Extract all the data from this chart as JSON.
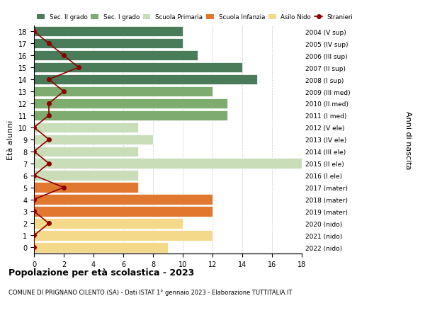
{
  "ages": [
    18,
    17,
    16,
    15,
    14,
    13,
    12,
    11,
    10,
    9,
    8,
    7,
    6,
    5,
    4,
    3,
    2,
    1,
    0
  ],
  "years": [
    "2004 (V sup)",
    "2005 (IV sup)",
    "2006 (III sup)",
    "2007 (II sup)",
    "2008 (I sup)",
    "2009 (III med)",
    "2010 (II med)",
    "2011 (I med)",
    "2012 (V ele)",
    "2013 (IV ele)",
    "2014 (III ele)",
    "2015 (II ele)",
    "2016 (I ele)",
    "2017 (mater)",
    "2018 (mater)",
    "2019 (mater)",
    "2020 (nido)",
    "2021 (nido)",
    "2022 (nido)"
  ],
  "bar_values": [
    10,
    10,
    11,
    14,
    15,
    12,
    13,
    13,
    7,
    8,
    7,
    18,
    7,
    7,
    12,
    12,
    10,
    12,
    9
  ],
  "bar_colors": [
    "#4a7c59",
    "#4a7c59",
    "#4a7c59",
    "#4a7c59",
    "#4a7c59",
    "#7eab6e",
    "#7eab6e",
    "#7eab6e",
    "#c8ddb8",
    "#c8ddb8",
    "#c8ddb8",
    "#c8ddb8",
    "#c8ddb8",
    "#e07830",
    "#e07830",
    "#e07830",
    "#f5d98b",
    "#f5d98b",
    "#f5d98b"
  ],
  "stranieri_values": [
    0,
    1,
    2,
    3,
    1,
    2,
    1,
    1,
    0,
    1,
    0,
    1,
    0,
    2,
    0,
    0,
    1,
    0,
    0
  ],
  "stranieri_color": "#8b0000",
  "legend_labels": [
    "Sec. II grado",
    "Sec. I grado",
    "Scuola Primaria",
    "Scuola Infanzia",
    "Asilo Nido",
    "Stranieri"
  ],
  "legend_colors": [
    "#4a7c59",
    "#7eab6e",
    "#c8ddb8",
    "#e07830",
    "#f5d98b",
    "#8b0000"
  ],
  "ylabel_left": "Età alunni",
  "ylabel_right": "Anni di nascita",
  "title": "Popolazione per età scolastica - 2023",
  "subtitle": "COMUNE DI PRIGNANO CILENTO (SA) - Dati ISTAT 1° gennaio 2023 - Elaborazione TUTTITALIA.IT",
  "xlim": [
    0,
    18
  ],
  "grid_color": "#cccccc"
}
